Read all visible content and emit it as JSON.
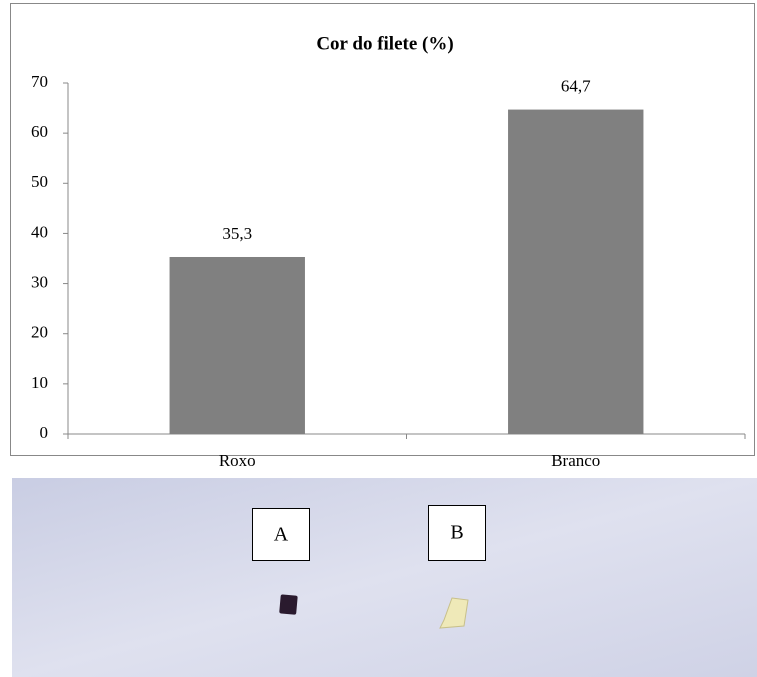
{
  "chart_data": {
    "type": "bar",
    "title": "Cor do filete (%)",
    "categories": [
      "Roxo",
      "Branco"
    ],
    "values": [
      35.3,
      64.7
    ],
    "value_labels": [
      "35,3",
      "64,7"
    ],
    "color": "#808080",
    "ylim": [
      0,
      70
    ],
    "yticks": [
      0,
      10,
      20,
      30,
      40,
      50,
      60,
      70
    ],
    "grid": false
  },
  "photo": {
    "labels": [
      "A",
      "B"
    ]
  }
}
